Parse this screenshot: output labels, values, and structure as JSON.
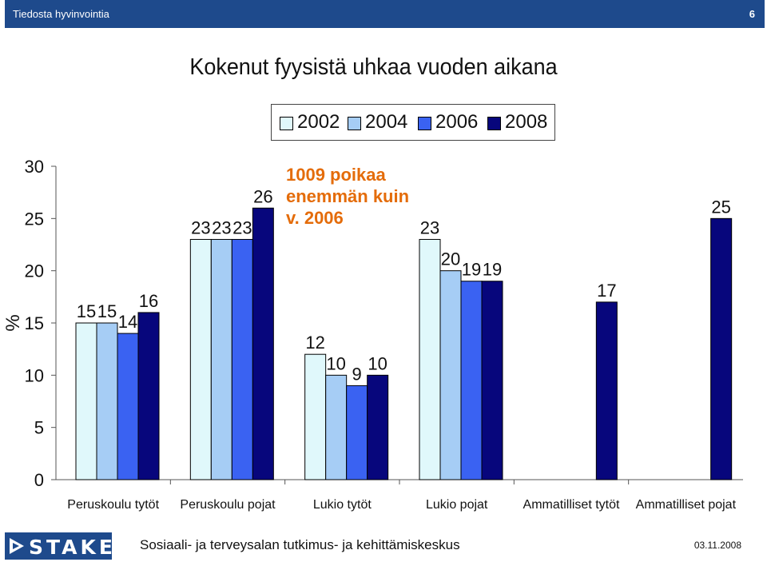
{
  "header": {
    "left_text": "Tiedosta hyvinvointia",
    "page_number": "6"
  },
  "footer": {
    "logo_text": "STAKES",
    "organization": "Sosiaali- ja terveysalan tutkimus- ja kehittämiskeskus",
    "date": "03.11.2008"
  },
  "colors": {
    "header_bg": "#1e4a8c",
    "s2002": "#e0f8fb",
    "s2004": "#a6cdf5",
    "s2006": "#3a62f2",
    "s2008": "#07067c",
    "annotation": "#e46c0a"
  },
  "chart_data": {
    "type": "bar",
    "title": "Kokenut fyysistä uhkaa vuoden aikana",
    "ylabel": "%",
    "xlabel": "",
    "ylim": [
      0,
      30
    ],
    "yticks": [
      "0",
      "5",
      "10",
      "15",
      "20",
      "25",
      "30"
    ],
    "grid": false,
    "legend_position": "top",
    "categories": [
      "Peruskoulu tytöt",
      "Peruskoulu pojat",
      "Lukio tytöt",
      "Lukio pojat",
      "Ammatilliset tytöt",
      "Ammatilliset pojat"
    ],
    "series": [
      {
        "name": "2002",
        "values": [
          15,
          23,
          12,
          23,
          null,
          null
        ]
      },
      {
        "name": "2004",
        "values": [
          15,
          23,
          10,
          20,
          null,
          null
        ]
      },
      {
        "name": "2006",
        "values": [
          14,
          23,
          9,
          19,
          null,
          null
        ]
      },
      {
        "name": "2008",
        "values": [
          16,
          26,
          10,
          19,
          17,
          25
        ]
      }
    ],
    "annotation": [
      "1009 poikaa",
      "enemmän kuin",
      "v. 2006"
    ]
  }
}
